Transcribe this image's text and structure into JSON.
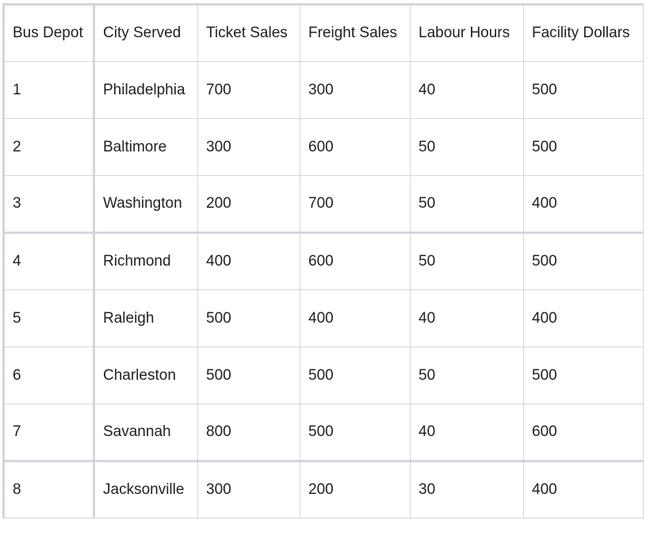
{
  "table": {
    "headers": [
      "Bus Depot",
      "City Served",
      "Ticket Sales",
      "Freight Sales",
      "Labour Hours",
      "Facility Dollars"
    ],
    "rows": [
      [
        "1",
        "Philadelphia",
        "700",
        "300",
        "40",
        "500"
      ],
      [
        "2",
        "Baltimore",
        "300",
        "600",
        "50",
        "500"
      ],
      [
        "3",
        "Washington",
        "200",
        "700",
        "50",
        "400"
      ],
      [
        "4",
        "Richmond",
        "400",
        "600",
        "50",
        "500"
      ],
      [
        "5",
        "Raleigh",
        "500",
        "400",
        "40",
        "400"
      ],
      [
        "6",
        "Charleston",
        "500",
        "500",
        "50",
        "500"
      ],
      [
        "7",
        "Savannah",
        "800",
        "500",
        "40",
        "600"
      ],
      [
        "8",
        "Jacksonville",
        "300",
        "200",
        "30",
        "400"
      ]
    ]
  },
  "colors": {
    "border": "#d3d6dd",
    "text": "#202124",
    "background": "#ffffff"
  }
}
